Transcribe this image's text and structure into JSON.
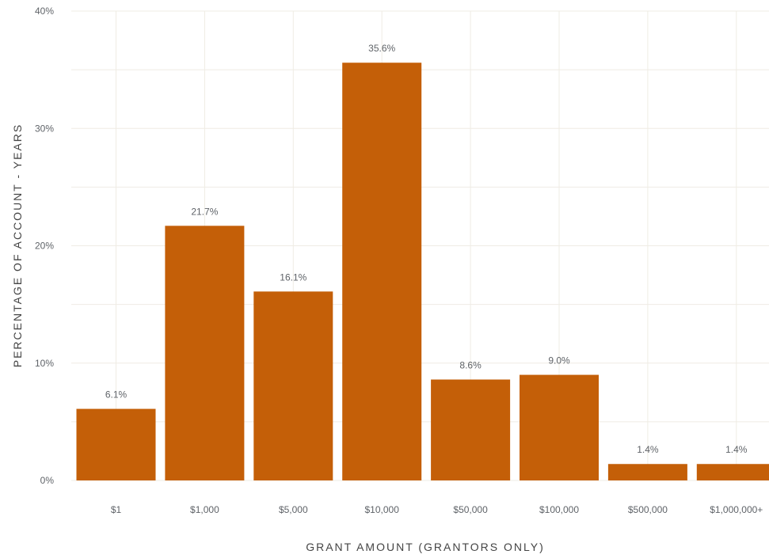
{
  "colors": {
    "bar": "#c45f08",
    "grid": "#efece4",
    "text": "#5f6368"
  },
  "chart_data": {
    "type": "bar",
    "title": "",
    "xlabel": "GRANT AMOUNT (GRANTORS ONLY)",
    "ylabel": "PERCENTAGE OF ACCOUNT - YEARS",
    "categories": [
      "$1",
      "$1,000",
      "$5,000",
      "$10,000",
      "$50,000",
      "$100,000",
      "$500,000",
      "$1,000,000+"
    ],
    "values": [
      6.1,
      21.7,
      16.1,
      35.6,
      8.6,
      9.0,
      1.4,
      1.4
    ],
    "data_labels": [
      "6.1%",
      "21.7%",
      "16.1%",
      "35.6%",
      "8.6%",
      "9.0%",
      "1.4%",
      "1.4%"
    ],
    "ylim": [
      0,
      40
    ],
    "yticks": [
      0,
      10,
      20,
      30,
      40
    ],
    "ytick_labels": [
      "0%",
      "10%",
      "20%",
      "30%",
      "40%"
    ],
    "grid": true,
    "legend": "none"
  }
}
